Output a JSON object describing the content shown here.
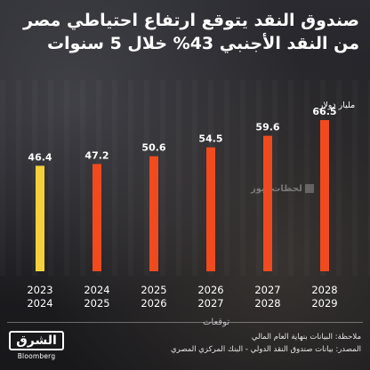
{
  "title": "صندوق النقد يتوقع ارتفاع احتياطي مصر من النقد الأجنبي 43% خلال 5 سنوات",
  "unit_label": "مليار دولار",
  "watermark": "لحظات نيوز",
  "forecast_label": "توقعات",
  "footer": {
    "note": "ملاحظة: البيانات بنهاية العام المالي",
    "source": "المصدر: بيانات صندوق النقد الدولي - البنك المركزي المصري"
  },
  "logo": {
    "main": "الشرق",
    "sub": "Bloomberg"
  },
  "colors": {
    "actual": "#f4d03a",
    "forecast": "#f04a1e",
    "background": "#1c1c20"
  },
  "chart_data": {
    "type": "bar",
    "categories": [
      [
        "2023",
        "2024"
      ],
      [
        "2024",
        "2025"
      ],
      [
        "2025",
        "2026"
      ],
      [
        "2026",
        "2027"
      ],
      [
        "2027",
        "2028"
      ],
      [
        "2028",
        "2029"
      ]
    ],
    "values": [
      46.4,
      47.2,
      50.6,
      54.5,
      59.6,
      66.5
    ],
    "forecast": [
      false,
      true,
      true,
      true,
      true,
      true
    ],
    "ylabel": "مليار دولار",
    "ylim": [
      0,
      66.5
    ],
    "grid": false,
    "legend": "none"
  }
}
